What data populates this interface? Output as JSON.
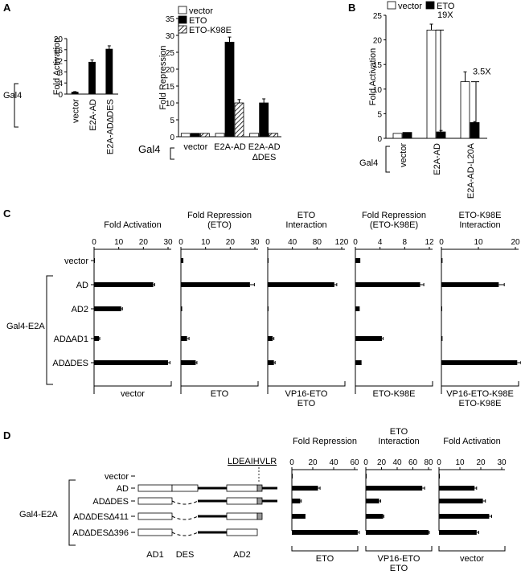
{
  "panels": {
    "A": "A",
    "B": "B",
    "C": "C",
    "D": "D"
  },
  "gal4": "Gal4",
  "gal4_e2a": "Gal4-E2A",
  "chart_data": [
    {
      "id": "A1",
      "type": "bar",
      "ylabel": "Fold Activation",
      "ylim": [
        0,
        20
      ],
      "yticks": [
        "0",
        "4",
        "8",
        "12",
        "16",
        "20"
      ],
      "categories": [
        "vector",
        "E2A-AD",
        "E2A-AD∆DES"
      ],
      "series": [
        {
          "values": [
            0.7,
            11.5,
            16.2
          ],
          "errors": [
            0.2,
            0.8,
            1.2
          ]
        }
      ]
    },
    {
      "id": "A2",
      "type": "bar",
      "ylabel": "Fold Repression",
      "ylim": [
        0,
        35
      ],
      "yticks": [
        "0",
        "5",
        "10",
        "15",
        "20",
        "25",
        "30",
        "35"
      ],
      "categories": [
        "vector",
        "E2A-AD",
        "E2A-AD ∆DES"
      ],
      "series": [
        {
          "name": "vector",
          "values": [
            1,
            1,
            1
          ],
          "errors": [
            0,
            0,
            0
          ]
        },
        {
          "name": "ETO",
          "values": [
            1,
            28,
            10
          ],
          "errors": [
            0,
            1.5,
            1.2
          ]
        },
        {
          "name": "ETO-K98E",
          "values": [
            1,
            10,
            1
          ],
          "errors": [
            0,
            1,
            0
          ]
        }
      ]
    },
    {
      "id": "B",
      "type": "bar",
      "ylabel": "Fold Activation",
      "ylim": [
        0,
        25
      ],
      "yticks": [
        "0",
        "5",
        "10",
        "15",
        "20",
        "25"
      ],
      "categories": [
        "vector",
        "E2A-AD",
        "E2A-AD-L20A"
      ],
      "series": [
        {
          "name": "vector",
          "values": [
            1,
            22,
            11.5
          ],
          "errors": [
            0,
            1.2,
            2
          ]
        },
        {
          "name": "ETO",
          "values": [
            1.2,
            1.3,
            3.2
          ],
          "errors": [
            0,
            0.3,
            0.2
          ]
        }
      ],
      "annotations": [
        "19X",
        "3.5X"
      ]
    },
    {
      "id": "C",
      "type": "bar",
      "orientation": "horizontal",
      "categories": [
        "vector",
        "AD",
        "AD2",
        "AD∆AD1",
        "AD∆DES"
      ],
      "subcharts": [
        {
          "title": [
            "Fold Activation"
          ],
          "xticks": [
            0,
            10,
            20,
            30
          ],
          "xlim": [
            0,
            30
          ],
          "values": [
            0.3,
            24,
            11,
            2,
            30
          ],
          "errors": [
            0,
            0.6,
            0.5,
            0.3,
            0.8
          ],
          "footer": [
            "vector"
          ]
        },
        {
          "title": [
            "Fold Repression",
            "(ETO)"
          ],
          "xticks": [
            0,
            10,
            20,
            30
          ],
          "xlim": [
            0,
            30
          ],
          "values": [
            1,
            28,
            0.5,
            2.5,
            6
          ],
          "errors": [
            0,
            1.8,
            0,
            0.8,
            0.5
          ],
          "footer": [
            "ETO"
          ]
        },
        {
          "title": [
            "ETO",
            "Interaction"
          ],
          "xticks": [
            0,
            40,
            80,
            120
          ],
          "xlim": [
            0,
            120
          ],
          "values": [
            1,
            108,
            0.5,
            8,
            10
          ],
          "errors": [
            0,
            4,
            0,
            2,
            2
          ],
          "footer": [
            "VP16-ETO",
            "ETO"
          ]
        },
        {
          "title": [
            "Fold Repression",
            "(ETO-K98E)"
          ],
          "xticks": [
            0,
            4,
            8,
            12
          ],
          "xlim": [
            0,
            12
          ],
          "values": [
            0.8,
            10.5,
            0.7,
            4.3,
            1
          ],
          "errors": [
            0,
            0.6,
            0,
            0.2,
            0
          ],
          "footer": [
            "ETO-K98E"
          ]
        },
        {
          "title": [
            "ETO-K98E",
            "Interaction"
          ],
          "xticks": [
            0,
            10,
            20
          ],
          "xlim": [
            0,
            20
          ],
          "values": [
            0.3,
            15.5,
            0.2,
            0.3,
            20.5
          ],
          "errors": [
            0,
            1.5,
            0,
            0,
            1
          ],
          "footer": [
            "VP16-ETO-K98E",
            "ETO-K98E"
          ]
        }
      ]
    },
    {
      "id": "D",
      "type": "bar",
      "orientation": "horizontal",
      "categories": [
        "vector",
        "AD",
        "AD∆DES",
        "AD∆DES∆411",
        "AD∆DES∆396"
      ],
      "subcharts": [
        {
          "title": [
            "Fold Repression"
          ],
          "xticks": [
            0,
            20,
            40,
            60
          ],
          "xlim": [
            0,
            60
          ],
          "values": [
            0.5,
            25,
            8,
            13,
            63
          ],
          "errors": [
            0,
            2,
            1,
            0,
            1.5
          ],
          "footer": [
            "ETO"
          ]
        },
        {
          "title": [
            "ETO",
            "Interaction"
          ],
          "xticks": [
            0,
            20,
            40,
            60,
            80
          ],
          "xlim": [
            0,
            80
          ],
          "values": [
            0.5,
            72,
            17,
            22,
            80
          ],
          "errors": [
            0,
            3,
            2,
            1,
            1
          ],
          "footer": [
            "VP16-ETO",
            "ETO"
          ]
        },
        {
          "title": [
            "Fold Activation"
          ],
          "xticks": [
            0,
            10,
            20,
            30
          ],
          "xlim": [
            0,
            30
          ],
          "values": [
            0.3,
            17,
            21,
            24,
            18
          ],
          "errors": [
            0,
            1,
            1.2,
            1.2,
            1
          ],
          "footer": [
            "vector"
          ]
        }
      ],
      "domain_labels": [
        "AD1",
        "DES",
        "AD2"
      ],
      "motif": "LDEAIHVLR"
    }
  ]
}
